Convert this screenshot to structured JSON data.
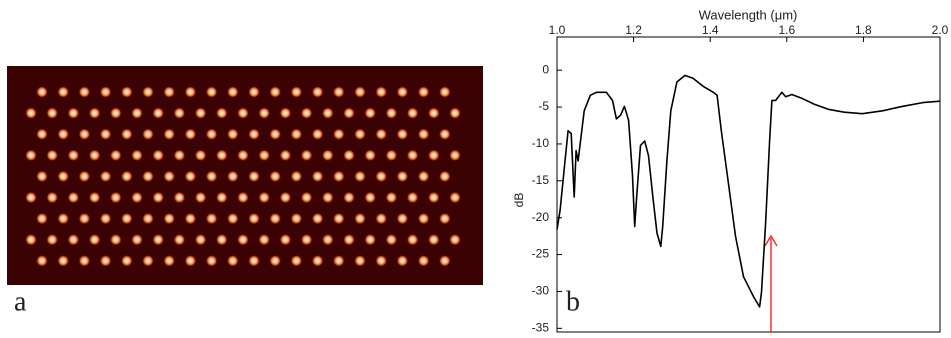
{
  "chart_data": {
    "type": "line",
    "x_label": "Wavelength (μm)",
    "y_label": "dB",
    "panel_labels": [
      "a",
      "b"
    ],
    "x": [
      1.0,
      1.008,
      1.021,
      1.029,
      1.037,
      1.045,
      1.05,
      1.055,
      1.071,
      1.087,
      1.103,
      1.129,
      1.145,
      1.155,
      1.166,
      1.176,
      1.187,
      1.197,
      1.203,
      1.208,
      1.218,
      1.229,
      1.239,
      1.25,
      1.261,
      1.271,
      1.276,
      1.287,
      1.297,
      1.313,
      1.334,
      1.355,
      1.382,
      1.408,
      1.418,
      1.429,
      1.445,
      1.466,
      1.487,
      1.513,
      1.529,
      1.534,
      1.545,
      1.555,
      1.561,
      1.571,
      1.587,
      1.597,
      1.613,
      1.639,
      1.671,
      1.708,
      1.75,
      1.797,
      1.85,
      1.903,
      1.955,
      2.0
    ],
    "series": [
      {
        "color": "#000000",
        "values": [
          -21.6,
          -19,
          -12.3,
          -8.2,
          -8.6,
          -17.2,
          -10.9,
          -12.3,
          -5.5,
          -3.4,
          -3.0,
          -3.0,
          -4.1,
          -6.6,
          -6.1,
          -4.9,
          -6.8,
          -14.3,
          -21.2,
          -17.1,
          -10.2,
          -9.6,
          -11.6,
          -17.1,
          -22.1,
          -23.9,
          -21.2,
          -12.3,
          -5.5,
          -1.6,
          -0.7,
          -1.1,
          -2.2,
          -3.0,
          -3.4,
          -8.2,
          -14.3,
          -22.5,
          -28.0,
          -30.7,
          -32.1,
          -30.1,
          -20.5,
          -9.6,
          -4.1,
          -4.1,
          -3.0,
          -3.6,
          -3.3,
          -3.8,
          -4.6,
          -5.3,
          -5.7,
          -5.9,
          -5.5,
          -4.9,
          -4.4,
          -4.2
        ]
      }
    ],
    "xlim": [
      1.0,
      2.0
    ],
    "xticks": [
      {
        "value": 1.0,
        "label": "1.0"
      },
      1.2,
      1.4,
      1.6,
      1.8,
      {
        "value": 2.0,
        "label": "2.0"
      }
    ],
    "ylim": [
      -35.5,
      4.5
    ],
    "yticks": [
      0,
      -5,
      -10,
      -15,
      -20,
      -25,
      -30,
      -35
    ]
  }
}
